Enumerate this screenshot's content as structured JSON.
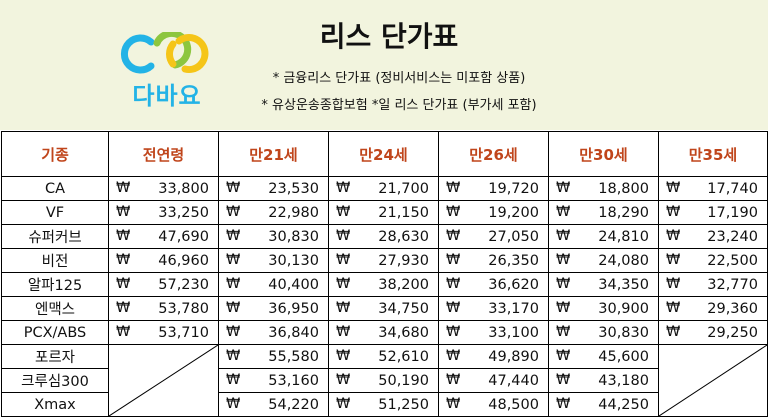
{
  "header": {
    "title": "리스 단가표",
    "logo_text": "다바요",
    "note1": "* 금융리스 단가표 (정비서비스는 미포함 상품)",
    "note2": "* 유상운송종합보험 *일 리스 단가표 (부가세 포함)"
  },
  "colors": {
    "header_bg": "#f2f4de",
    "column_header_text": "#c0451b",
    "logo_blue": "#23b3e6",
    "logo_green": "#8dc63f",
    "logo_yellow": "#f5c518"
  },
  "currency_symbol": "₩",
  "table": {
    "columns": [
      "기종",
      "전연령",
      "만21세",
      "만24세",
      "만26세",
      "만30세",
      "만35세"
    ],
    "rows": [
      {
        "model": "CA",
        "prices": [
          "33,800",
          "23,530",
          "21,700",
          "19,720",
          "18,800",
          "17,740"
        ]
      },
      {
        "model": "VF",
        "prices": [
          "33,250",
          "22,980",
          "21,150",
          "19,200",
          "18,290",
          "17,190"
        ]
      },
      {
        "model": "슈퍼커브",
        "prices": [
          "47,690",
          "30,830",
          "28,630",
          "27,050",
          "24,810",
          "23,240"
        ]
      },
      {
        "model": "비전",
        "prices": [
          "46,960",
          "30,130",
          "27,930",
          "26,350",
          "24,080",
          "22,500"
        ]
      },
      {
        "model": "알파125",
        "prices": [
          "57,230",
          "40,400",
          "38,200",
          "36,620",
          "34,350",
          "32,770"
        ]
      },
      {
        "model": "엔맥스",
        "prices": [
          "53,780",
          "36,950",
          "34,750",
          "33,170",
          "30,900",
          "29,360"
        ]
      },
      {
        "model": "PCX/ABS",
        "prices": [
          "53,710",
          "36,840",
          "34,680",
          "33,100",
          "30,830",
          "29,250"
        ]
      },
      {
        "model": "포르자",
        "prices": [
          null,
          "55,580",
          "52,610",
          "49,890",
          "45,600",
          null
        ]
      },
      {
        "model": "크루심300",
        "prices": [
          null,
          "53,160",
          "50,190",
          "47,440",
          "43,180",
          null
        ]
      },
      {
        "model": "Xmax",
        "prices": [
          null,
          "54,220",
          "51,250",
          "48,500",
          "44,250",
          null
        ]
      }
    ]
  }
}
